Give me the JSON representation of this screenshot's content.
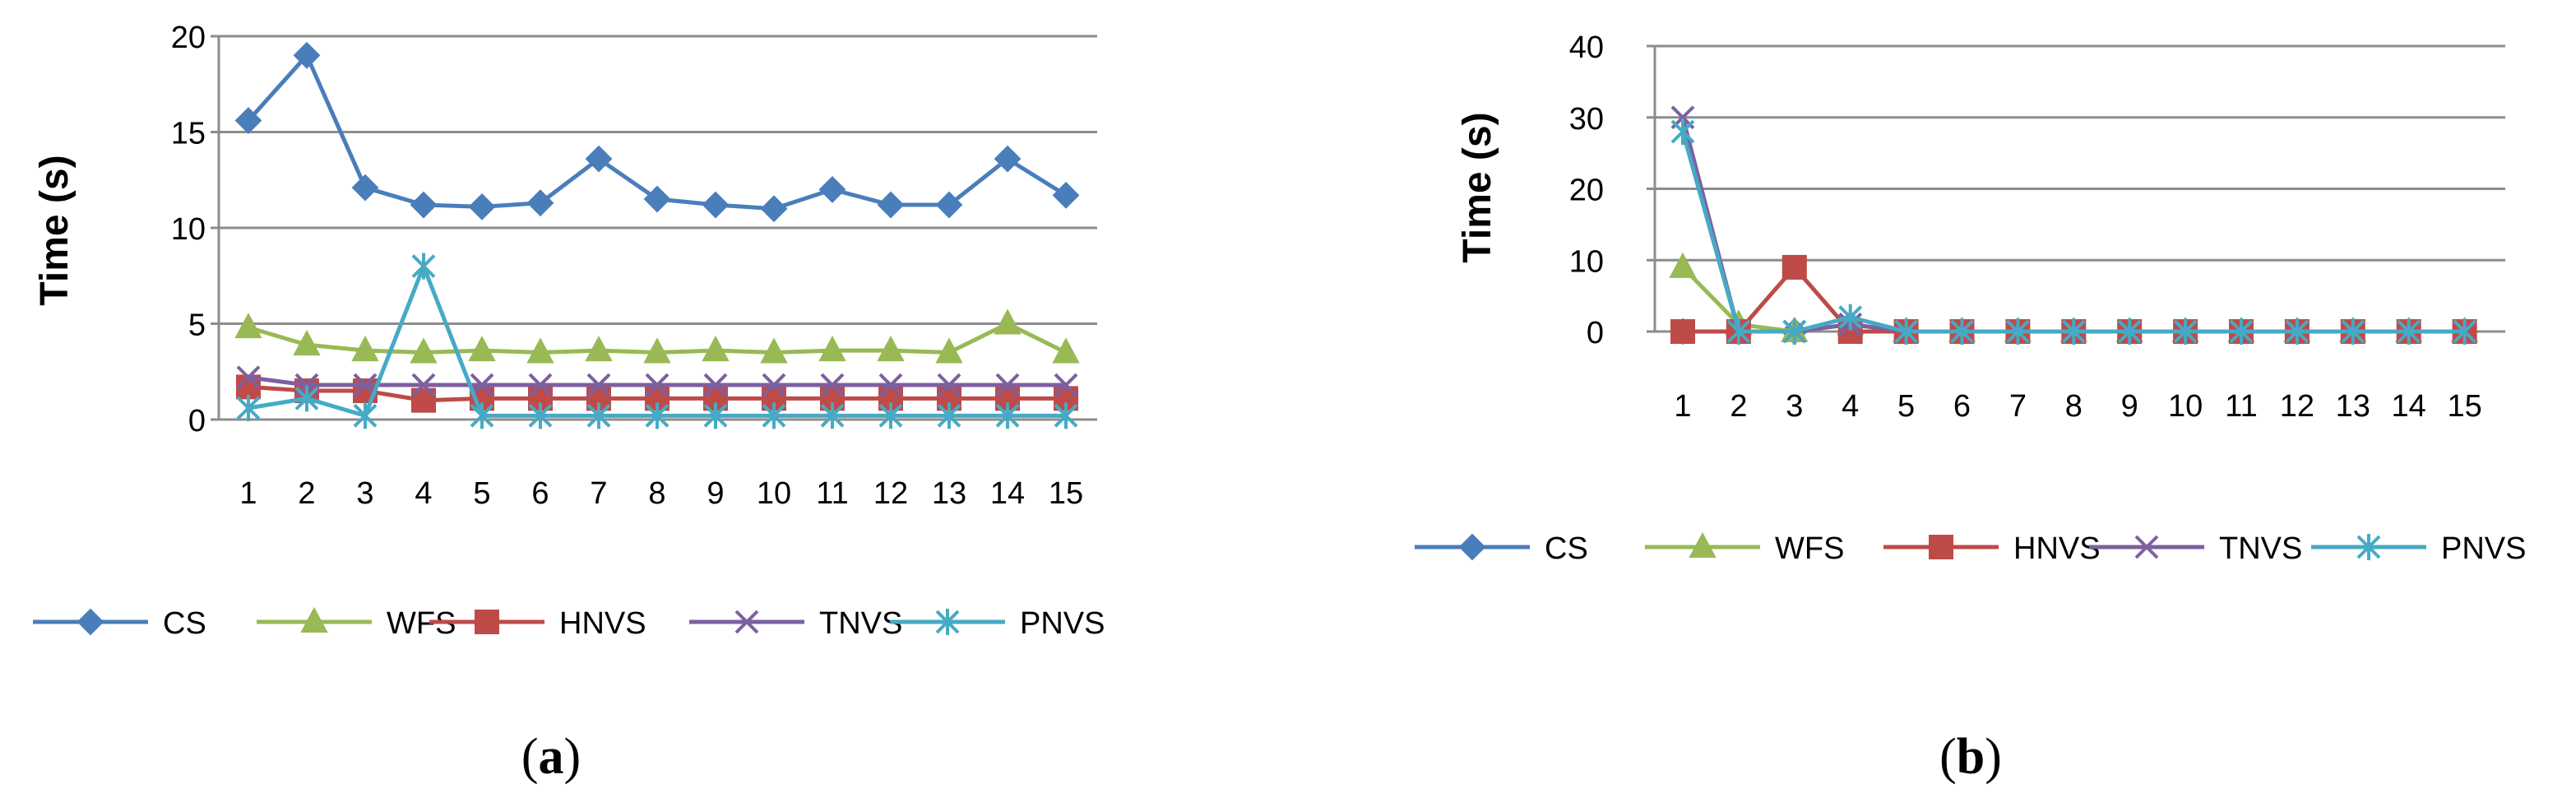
{
  "panels": [
    {
      "label_open": "(",
      "label_letter": "a",
      "label_close": ")"
    },
    {
      "label_open": "(",
      "label_letter": "b",
      "label_close": ")"
    }
  ],
  "chart_data": [
    {
      "type": "line",
      "title": "",
      "xlabel": "",
      "ylabel": "Time (s)",
      "ylim": [
        0,
        20
      ],
      "yticks": [
        0,
        5,
        10,
        15,
        20
      ],
      "grid": true,
      "legend": "bottom",
      "categories": [
        "1",
        "2",
        "3",
        "4",
        "5",
        "6",
        "7",
        "8",
        "9",
        "10",
        "11",
        "12",
        "13",
        "14",
        "15"
      ],
      "series": [
        {
          "name": "CS",
          "color": "#4a7ebb",
          "marker": "diamond",
          "values": [
            15.6,
            19.0,
            12.1,
            11.2,
            11.1,
            11.3,
            13.6,
            11.5,
            11.2,
            11.0,
            12.0,
            11.2,
            11.2,
            13.6,
            11.7
          ]
        },
        {
          "name": "WFS",
          "color": "#98b954",
          "marker": "triangle",
          "values": [
            4.8,
            3.9,
            3.6,
            3.5,
            3.6,
            3.5,
            3.6,
            3.5,
            3.6,
            3.5,
            3.6,
            3.6,
            3.5,
            5.0,
            3.5
          ]
        },
        {
          "name": "HNVS",
          "color": "#be4b48",
          "marker": "square",
          "values": [
            1.7,
            1.5,
            1.5,
            1.0,
            1.1,
            1.1,
            1.1,
            1.1,
            1.1,
            1.1,
            1.1,
            1.1,
            1.1,
            1.1,
            1.1
          ]
        },
        {
          "name": "TNVS",
          "color": "#7d60a0",
          "marker": "x",
          "values": [
            2.2,
            1.8,
            1.8,
            1.8,
            1.8,
            1.8,
            1.8,
            1.8,
            1.8,
            1.8,
            1.8,
            1.8,
            1.8,
            1.8,
            1.8
          ]
        },
        {
          "name": "PNVS",
          "color": "#46aac5",
          "marker": "asterisk",
          "values": [
            0.6,
            1.1,
            0.2,
            8.0,
            0.2,
            0.2,
            0.2,
            0.2,
            0.2,
            0.2,
            0.2,
            0.2,
            0.2,
            0.2,
            0.2
          ]
        }
      ]
    },
    {
      "type": "line",
      "title": "",
      "xlabel": "",
      "ylabel": "Time (s)",
      "ylim": [
        0,
        40
      ],
      "yticks": [
        0,
        10,
        20,
        30,
        40
      ],
      "grid": true,
      "legend": "bottom",
      "categories": [
        "1",
        "2",
        "3",
        "4",
        "5",
        "6",
        "7",
        "8",
        "9",
        "10",
        "11",
        "12",
        "13",
        "14",
        "15"
      ],
      "series": [
        {
          "name": "CS",
          "color": "#4a7ebb",
          "marker": "diamond",
          "values": [
            0,
            0,
            0,
            1,
            0,
            0,
            0,
            0,
            0,
            0,
            0,
            0,
            0,
            0,
            0
          ]
        },
        {
          "name": "WFS",
          "color": "#98b954",
          "marker": "triangle",
          "values": [
            9,
            1,
            0,
            1,
            0,
            0,
            0,
            0,
            0,
            0,
            0,
            0,
            0,
            0,
            0
          ]
        },
        {
          "name": "HNVS",
          "color": "#be4b48",
          "marker": "square",
          "values": [
            0,
            0,
            9,
            0,
            0,
            0,
            0,
            0,
            0,
            0,
            0,
            0,
            0,
            0,
            0
          ]
        },
        {
          "name": "TNVS",
          "color": "#7d60a0",
          "marker": "x",
          "values": [
            30,
            0,
            0,
            1,
            0,
            0,
            0,
            0,
            0,
            0,
            0,
            0,
            0,
            0,
            0
          ]
        },
        {
          "name": "PNVS",
          "color": "#46aac5",
          "marker": "asterisk",
          "values": [
            28,
            0,
            0,
            2,
            0,
            0,
            0,
            0,
            0,
            0,
            0,
            0,
            0,
            0,
            0
          ]
        }
      ]
    }
  ]
}
